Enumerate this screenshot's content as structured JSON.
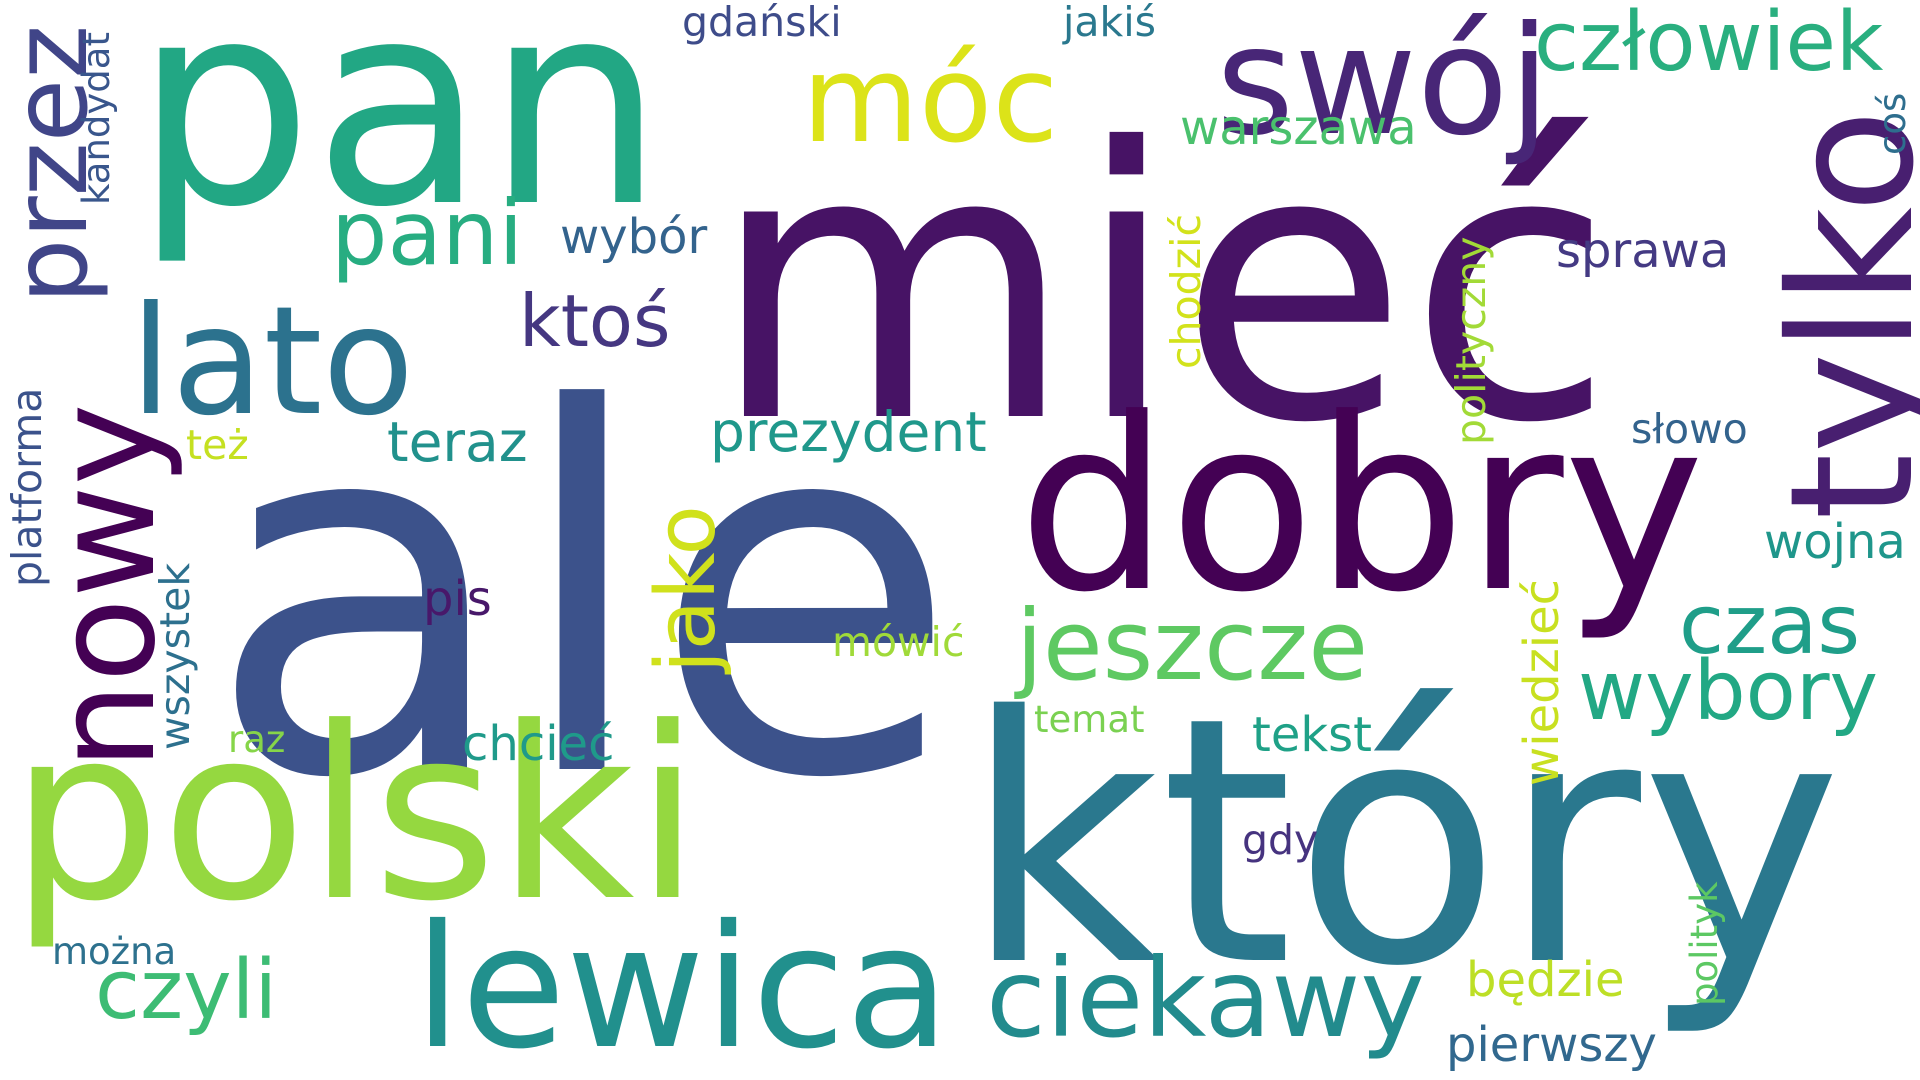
{
  "words": [
    {
      "id": "pan",
      "text": "pan",
      "color": "#22a784"
    },
    {
      "id": "miec",
      "text": "mieć",
      "color": "#471365"
    },
    {
      "id": "ale",
      "text": "ale",
      "color": "#3c528b"
    },
    {
      "id": "ktory",
      "text": "który",
      "color": "#2a788e"
    },
    {
      "id": "polski",
      "text": "polski",
      "color": "#95d840"
    },
    {
      "id": "dobry",
      "text": "dobry",
      "color": "#440154"
    },
    {
      "id": "lewica",
      "text": "lewica",
      "color": "#21908d"
    },
    {
      "id": "tylko",
      "text": "tylko",
      "color": "#481f70"
    },
    {
      "id": "swoj",
      "text": "swój",
      "color": "#482677"
    },
    {
      "id": "moc",
      "text": "móc",
      "color": "#dce319"
    },
    {
      "id": "lato",
      "text": "lato",
      "color": "#2c728e"
    },
    {
      "id": "nowy",
      "text": "nowy",
      "color": "#440154"
    },
    {
      "id": "przez",
      "text": "przez",
      "color": "#404588"
    },
    {
      "id": "czlowiek",
      "text": "człowiek",
      "color": "#29af7f"
    },
    {
      "id": "ciekawy",
      "text": "ciekawy",
      "color": "#228b8d"
    },
    {
      "id": "jeszcze",
      "text": "jeszcze",
      "color": "#5ec962"
    },
    {
      "id": "pani",
      "text": "pani",
      "color": "#27ad81"
    },
    {
      "id": "wybory",
      "text": "wybory",
      "color": "#22a884"
    },
    {
      "id": "jako",
      "text": "jako",
      "color": "#d0e11c"
    },
    {
      "id": "czas",
      "text": "czas",
      "color": "#1f9e89"
    },
    {
      "id": "czyli",
      "text": "czyli",
      "color": "#3dbc74"
    },
    {
      "id": "ktos",
      "text": "ktoś",
      "color": "#453781"
    },
    {
      "id": "prezydent",
      "text": "prezydent",
      "color": "#1f988b"
    },
    {
      "id": "teraz",
      "text": "teraz",
      "color": "#21918c"
    },
    {
      "id": "warszawa",
      "text": "warszawa",
      "color": "#4ac16d"
    },
    {
      "id": "pierwszy",
      "text": "pierwszy",
      "color": "#31688e"
    },
    {
      "id": "bedzie",
      "text": "będzie",
      "color": "#bddf26"
    },
    {
      "id": "tekst",
      "text": "tekst",
      "color": "#1fa187"
    },
    {
      "id": "chciec",
      "text": "chcieć",
      "color": "#1f9a8a"
    },
    {
      "id": "wojna",
      "text": "wojna",
      "color": "#1f968b"
    },
    {
      "id": "sprawa",
      "text": "sprawa",
      "color": "#443a83"
    },
    {
      "id": "wiedziec",
      "text": "wiedzieć",
      "color": "#c8e020"
    },
    {
      "id": "wybor",
      "text": "wybór",
      "color": "#33638d"
    },
    {
      "id": "kandydat",
      "text": "kandydat",
      "color": "#39568c"
    },
    {
      "id": "wszystek",
      "text": "wszystek",
      "color": "#2d708e"
    },
    {
      "id": "platforma",
      "text": "platforma",
      "color": "#3b528b"
    },
    {
      "id": "mowic",
      "text": "mówić",
      "color": "#a0da39"
    },
    {
      "id": "chodzic",
      "text": "chodzić",
      "color": "#d2e21b"
    },
    {
      "id": "polityczny",
      "text": "polityczny",
      "color": "#a2da37"
    },
    {
      "id": "jakis",
      "text": "jakiś",
      "color": "#2a788e"
    },
    {
      "id": "gdanski",
      "text": "gdański",
      "color": "#3e4c8a"
    },
    {
      "id": "pis",
      "text": "pis",
      "color": "#48186a"
    },
    {
      "id": "slowo",
      "text": "słowo",
      "color": "#33638d"
    },
    {
      "id": "tez",
      "text": "też",
      "color": "#c5e021"
    },
    {
      "id": "temat",
      "text": "temat",
      "color": "#7ad151"
    },
    {
      "id": "raz",
      "text": "raz",
      "color": "#86d549"
    },
    {
      "id": "gdy",
      "text": "gdy",
      "color": "#46337f"
    },
    {
      "id": "polityk",
      "text": "polityk",
      "color": "#5cc863"
    },
    {
      "id": "mozna",
      "text": "można",
      "color": "#2d718e"
    },
    {
      "id": "cos",
      "text": "coś",
      "color": "#2e6e8e"
    }
  ]
}
